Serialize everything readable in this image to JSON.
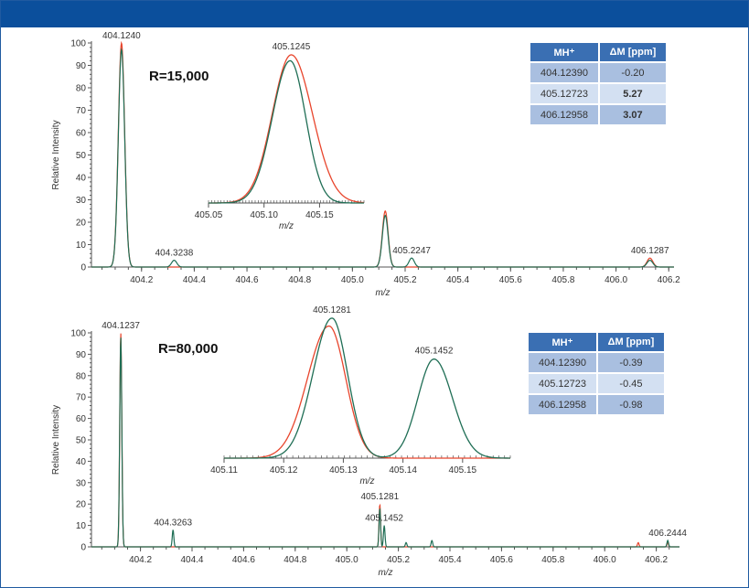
{
  "colors": {
    "header": "#0b4f9c",
    "red": "#e8452c",
    "green": "#1f6e55",
    "axis": "#555555"
  },
  "chart_data": [
    {
      "type": "line",
      "panel": "top",
      "resolution_label": "R=15,000",
      "ylabel": "Relative Intensity",
      "xlabel": "m/z",
      "xlim": [
        404.01,
        406.22
      ],
      "ylim": [
        0,
        100
      ],
      "x_ticks": [
        "404.2",
        "404.4",
        "404.6",
        "404.8",
        "405.0",
        "405.2",
        "405.4",
        "405.6",
        "405.8",
        "406.0",
        "406.2"
      ],
      "y_ticks": [
        "0",
        "10",
        "20",
        "30",
        "40",
        "50",
        "60",
        "70",
        "80",
        "90",
        "100"
      ],
      "peaks": [
        {
          "label": "404.1240",
          "x": 404.124,
          "red": 100,
          "green": 97,
          "w": 0.012
        },
        {
          "label": "404.3238",
          "x": 404.3238,
          "red": 0,
          "green": 3,
          "w": 0.01
        },
        {
          "label": "",
          "x": 405.1245,
          "red": 25,
          "green": 23,
          "w": 0.011
        },
        {
          "label": "405.2247",
          "x": 405.2247,
          "red": 0,
          "green": 4,
          "w": 0.01
        },
        {
          "label": "406.1287",
          "x": 406.1287,
          "red": 4,
          "green": 3,
          "w": 0.011
        }
      ],
      "inset": {
        "xlabel": "m/z",
        "xlim": [
          405.05,
          405.19
        ],
        "x_ticks": [
          "405.05",
          "405.10",
          "405.15"
        ],
        "peak_label": "405.1245",
        "series": [
          {
            "name": "red",
            "center": 405.1245,
            "height": 100,
            "sl": 0.017,
            "sr": 0.019
          },
          {
            "name": "green",
            "center": 405.1235,
            "height": 96,
            "sl": 0.016,
            "sr": 0.014
          }
        ]
      }
    },
    {
      "type": "line",
      "panel": "bottom",
      "resolution_label": "R=80,000",
      "ylabel": "Relative Intensity",
      "xlabel": "m/z",
      "xlim": [
        404.01,
        406.29
      ],
      "ylim": [
        0,
        100
      ],
      "x_ticks": [
        "404.2",
        "404.4",
        "404.6",
        "404.8",
        "405.0",
        "405.2",
        "405.4",
        "405.6",
        "405.8",
        "406.0",
        "406.2"
      ],
      "y_ticks": [
        "0",
        "10",
        "20",
        "30",
        "40",
        "50",
        "60",
        "70",
        "80",
        "90",
        "100"
      ],
      "peaks": [
        {
          "label": "404.1237",
          "x": 404.1237,
          "red": 100,
          "green": 98,
          "w": 0.004
        },
        {
          "label": "404.3263",
          "x": 404.3263,
          "red": 0,
          "green": 8,
          "w": 0.003
        },
        {
          "label": "405.1281",
          "x": 405.1281,
          "red": 20,
          "green": 18,
          "w": 0.003
        },
        {
          "label": "405.1452",
          "x": 405.1452,
          "red": 0,
          "green": 10,
          "w": 0.003
        },
        {
          "label": "",
          "x": 405.23,
          "red": 0,
          "green": 2,
          "w": 0.003
        },
        {
          "label": "",
          "x": 405.33,
          "red": 0,
          "green": 3,
          "w": 0.003
        },
        {
          "label": "",
          "x": 406.13,
          "red": 2,
          "green": 0,
          "w": 0.003
        },
        {
          "label": "406.2444",
          "x": 406.2444,
          "red": 2,
          "green": 3,
          "w": 0.003
        }
      ],
      "inset": {
        "xlabel": "m/z",
        "xlim": [
          405.11,
          405.158
        ],
        "x_ticks": [
          "405.11",
          "405.12",
          "405.13",
          "405.14",
          "405.15"
        ],
        "peak_label": "405.1281",
        "peak_label_2": "405.1452",
        "series": [
          {
            "name": "red",
            "peaks": [
              {
                "center": 405.1276,
                "height": 100,
                "sl": 0.0036,
                "sr": 0.0028
              }
            ]
          },
          {
            "name": "green",
            "peaks": [
              {
                "center": 405.1281,
                "height": 106,
                "sl": 0.0032,
                "sr": 0.0026
              },
              {
                "center": 405.1452,
                "height": 75,
                "sl": 0.0027,
                "sr": 0.0031
              }
            ]
          }
        ]
      }
    }
  ],
  "tables": [
    {
      "col1": "MH⁺",
      "col2": "ΔM [ppm]",
      "rows": [
        {
          "mass": "404.12390",
          "ppm": "-0.20",
          "highlight": false
        },
        {
          "mass": "405.12723",
          "ppm": "5.27",
          "highlight": true
        },
        {
          "mass": "406.12958",
          "ppm": "3.07",
          "highlight": true
        }
      ]
    },
    {
      "col1": "MH⁺",
      "col2": "ΔM [ppm]",
      "rows": [
        {
          "mass": "404.12390",
          "ppm": "-0.39",
          "highlight": false
        },
        {
          "mass": "405.12723",
          "ppm": "-0.45",
          "highlight": false
        },
        {
          "mass": "406.12958",
          "ppm": "-0.98",
          "highlight": false
        }
      ]
    }
  ]
}
